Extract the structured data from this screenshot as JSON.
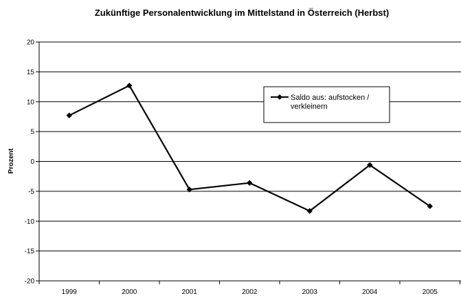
{
  "chart_data": {
    "type": "line",
    "title": "Zukünftige Personalentwicklung im Mittelstand in Österreich (Herbst)",
    "xlabel": "",
    "ylabel": "Prozent",
    "categories": [
      "1999",
      "2000",
      "2001",
      "2002",
      "2003",
      "2004",
      "2005"
    ],
    "series": [
      {
        "name": "Saldo aus: aufstocken / verkleinern",
        "legend_lines": [
          "Saldo aus: aufstocken /",
          "verkleinern"
        ],
        "values": [
          7.7,
          12.7,
          -4.7,
          -3.6,
          -8.3,
          -0.6,
          -7.5
        ],
        "color": "#000000",
        "marker": "diamond"
      }
    ],
    "ylim": [
      -20,
      20
    ],
    "yticks": [
      -20,
      -15,
      -10,
      -5,
      0,
      5,
      10,
      15,
      20
    ],
    "grid": true,
    "legend_position": "top-right"
  }
}
